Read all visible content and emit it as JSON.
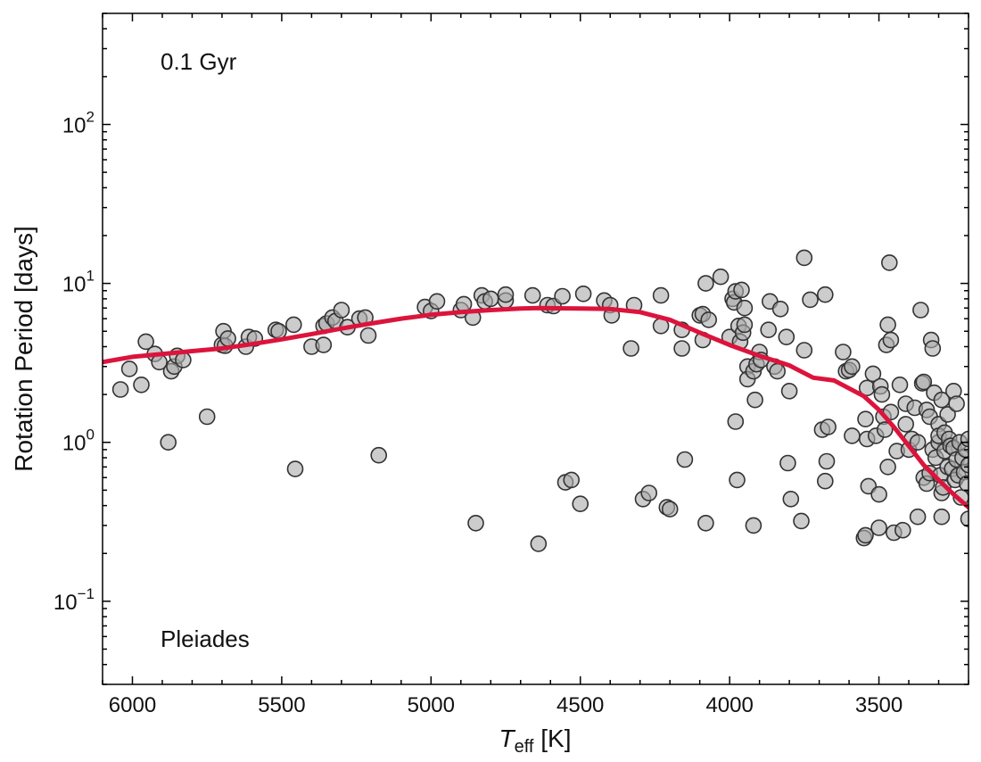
{
  "chart_data": {
    "type": "scatter",
    "xlabel": {
      "main": "T",
      "sub": "eff",
      "unit": " [K]"
    },
    "ylabel": "Rotation Period [days]",
    "x_axis": {
      "reversed": true,
      "range": [
        6100,
        3200
      ],
      "ticks": [
        6000,
        5500,
        5000,
        4500,
        4000,
        3500
      ]
    },
    "y_axis": {
      "scale": "log",
      "range": [
        0.03,
        500
      ],
      "ticks": [
        {
          "value": 0.1,
          "base": "10",
          "exp": "−1"
        },
        {
          "value": 1,
          "base": "10",
          "exp": "0"
        },
        {
          "value": 10,
          "base": "10",
          "exp": "1"
        },
        {
          "value": 100,
          "base": "10",
          "exp": "2"
        }
      ]
    },
    "annotations": {
      "age": "0.1 Gyr",
      "cluster": "Pleiades"
    },
    "colors": {
      "curve": "#dc143c",
      "points_fill": "#aaaaaa",
      "points_edge": "#333333"
    },
    "model_curve": [
      [
        6100,
        3.2
      ],
      [
        6000,
        3.45
      ],
      [
        5900,
        3.6
      ],
      [
        5800,
        3.75
      ],
      [
        5700,
        3.9
      ],
      [
        5600,
        4.15
      ],
      [
        5500,
        4.45
      ],
      [
        5400,
        4.8
      ],
      [
        5300,
        5.2
      ],
      [
        5200,
        5.6
      ],
      [
        5100,
        6.0
      ],
      [
        5000,
        6.35
      ],
      [
        4900,
        6.6
      ],
      [
        4800,
        6.8
      ],
      [
        4700,
        6.95
      ],
      [
        4640,
        7.0
      ],
      [
        4500,
        6.95
      ],
      [
        4400,
        6.9
      ],
      [
        4300,
        6.6
      ],
      [
        4200,
        5.9
      ],
      [
        4100,
        4.9
      ],
      [
        4000,
        4.1
      ],
      [
        3900,
        3.5
      ],
      [
        3800,
        3.05
      ],
      [
        3720,
        2.55
      ],
      [
        3650,
        2.45
      ],
      [
        3550,
        1.95
      ],
      [
        3500,
        1.6
      ],
      [
        3450,
        1.25
      ],
      [
        3400,
        0.95
      ],
      [
        3350,
        0.72
      ],
      [
        3300,
        0.58
      ],
      [
        3250,
        0.47
      ],
      [
        3200,
        0.39
      ]
    ],
    "points": [
      [
        6040,
        2.15
      ],
      [
        6010,
        2.9
      ],
      [
        5970,
        2.3
      ],
      [
        5955,
        4.3
      ],
      [
        5925,
        3.6
      ],
      [
        5910,
        3.2
      ],
      [
        5880,
        1.0
      ],
      [
        5870,
        2.8
      ],
      [
        5860,
        3.0
      ],
      [
        5850,
        3.5
      ],
      [
        5830,
        3.3
      ],
      [
        5750,
        1.45
      ],
      [
        5700,
        4.1
      ],
      [
        5695,
        5.0
      ],
      [
        5690,
        4.05
      ],
      [
        5680,
        4.5
      ],
      [
        5620,
        4.0
      ],
      [
        5610,
        4.6
      ],
      [
        5590,
        4.5
      ],
      [
        5520,
        5.1
      ],
      [
        5510,
        5.0
      ],
      [
        5460,
        5.5
      ],
      [
        5455,
        0.68
      ],
      [
        5400,
        4.0
      ],
      [
        5360,
        4.1
      ],
      [
        5360,
        5.4
      ],
      [
        5350,
        5.6
      ],
      [
        5330,
        6.1
      ],
      [
        5320,
        5.8
      ],
      [
        5300,
        6.8
      ],
      [
        5280,
        5.3
      ],
      [
        5240,
        6.0
      ],
      [
        5220,
        6.1
      ],
      [
        5210,
        4.7
      ],
      [
        5175,
        0.83
      ],
      [
        5020,
        7.1
      ],
      [
        5000,
        6.7
      ],
      [
        4980,
        7.7
      ],
      [
        4900,
        6.8
      ],
      [
        4890,
        7.4
      ],
      [
        4860,
        6.1
      ],
      [
        4850,
        0.31
      ],
      [
        4830,
        8.4
      ],
      [
        4820,
        7.7
      ],
      [
        4800,
        8.0
      ],
      [
        4750,
        7.8
      ],
      [
        4750,
        8.5
      ],
      [
        4660,
        8.4
      ],
      [
        4640,
        0.23
      ],
      [
        4610,
        7.3
      ],
      [
        4590,
        7.2
      ],
      [
        4560,
        8.3
      ],
      [
        4550,
        0.56
      ],
      [
        4530,
        0.58
      ],
      [
        4500,
        0.41
      ],
      [
        4490,
        8.6
      ],
      [
        4420,
        7.8
      ],
      [
        4400,
        7.3
      ],
      [
        4395,
        6.3
      ],
      [
        4330,
        3.9
      ],
      [
        4320,
        7.3
      ],
      [
        4290,
        0.44
      ],
      [
        4270,
        0.48
      ],
      [
        4230,
        5.4
      ],
      [
        4230,
        8.4
      ],
      [
        4210,
        0.39
      ],
      [
        4200,
        0.38
      ],
      [
        4160,
        3.9
      ],
      [
        4160,
        5.1
      ],
      [
        4150,
        0.78
      ],
      [
        4100,
        6.3
      ],
      [
        4090,
        6.4
      ],
      [
        4090,
        4.4
      ],
      [
        4080,
        0.31
      ],
      [
        4080,
        10.0
      ],
      [
        4070,
        5.9
      ],
      [
        4030,
        11.0
      ],
      [
        4000,
        4.6
      ],
      [
        3990,
        8.0
      ],
      [
        3985,
        7.6
      ],
      [
        3980,
        8.9
      ],
      [
        3980,
        1.35
      ],
      [
        3975,
        0.58
      ],
      [
        3970,
        5.4
      ],
      [
        3965,
        4.3
      ],
      [
        3960,
        9.1
      ],
      [
        3955,
        4.9
      ],
      [
        3950,
        7.0
      ],
      [
        3950,
        5.5
      ],
      [
        3940,
        3.0
      ],
      [
        3940,
        2.5
      ],
      [
        3920,
        2.8
      ],
      [
        3920,
        0.3
      ],
      [
        3915,
        1.85
      ],
      [
        3910,
        3.1
      ],
      [
        3900,
        3.7
      ],
      [
        3895,
        3.3
      ],
      [
        3870,
        5.1
      ],
      [
        3865,
        7.7
      ],
      [
        3850,
        3.0
      ],
      [
        3840,
        2.8
      ],
      [
        3830,
        6.9
      ],
      [
        3810,
        4.6
      ],
      [
        3805,
        0.74
      ],
      [
        3800,
        2.1
      ],
      [
        3795,
        0.44
      ],
      [
        3760,
        0.32
      ],
      [
        3750,
        3.8
      ],
      [
        3750,
        14.5
      ],
      [
        3730,
        7.9
      ],
      [
        3690,
        1.2
      ],
      [
        3680,
        8.5
      ],
      [
        3680,
        0.57
      ],
      [
        3675,
        0.76
      ],
      [
        3670,
        1.25
      ],
      [
        3620,
        3.7
      ],
      [
        3610,
        2.8
      ],
      [
        3600,
        2.85
      ],
      [
        3590,
        3.0
      ],
      [
        3590,
        1.1
      ],
      [
        3550,
        0.25
      ],
      [
        3545,
        0.26
      ],
      [
        3545,
        1.4
      ],
      [
        3540,
        2.2
      ],
      [
        3540,
        1.05
      ],
      [
        3535,
        0.53
      ],
      [
        3520,
        2.7
      ],
      [
        3510,
        1.1
      ],
      [
        3500,
        0.29
      ],
      [
        3500,
        0.47
      ],
      [
        3495,
        2.25
      ],
      [
        3490,
        2.0
      ],
      [
        3485,
        1.45
      ],
      [
        3480,
        1.2
      ],
      [
        3475,
        4.1
      ],
      [
        3470,
        0.7
      ],
      [
        3470,
        5.5
      ],
      [
        3465,
        13.5
      ],
      [
        3460,
        1.55
      ],
      [
        3460,
        4.4
      ],
      [
        3450,
        0.27
      ],
      [
        3440,
        0.88
      ],
      [
        3430,
        2.3
      ],
      [
        3420,
        0.28
      ],
      [
        3410,
        1.75
      ],
      [
        3410,
        1.3
      ],
      [
        3400,
        0.9
      ],
      [
        3390,
        1.05
      ],
      [
        3380,
        1.65
      ],
      [
        3370,
        1.0
      ],
      [
        3370,
        0.34
      ],
      [
        3360,
        6.8
      ],
      [
        3355,
        2.35
      ],
      [
        3350,
        2.4
      ],
      [
        3350,
        0.6
      ],
      [
        3340,
        1.6
      ],
      [
        3340,
        0.55
      ],
      [
        3330,
        0.64
      ],
      [
        3330,
        1.45
      ],
      [
        3325,
        4.4
      ],
      [
        3320,
        3.9
      ],
      [
        3320,
        0.9
      ],
      [
        3315,
        2.05
      ],
      [
        3310,
        0.8
      ],
      [
        3300,
        1.0
      ],
      [
        3300,
        1.3
      ],
      [
        3300,
        1.1
      ],
      [
        3295,
        0.62
      ],
      [
        3290,
        1.85
      ],
      [
        3290,
        0.48
      ],
      [
        3290,
        0.34
      ],
      [
        3285,
        0.52
      ],
      [
        3280,
        1.15
      ],
      [
        3280,
        0.88
      ],
      [
        3270,
        1.5
      ],
      [
        3270,
        0.7
      ],
      [
        3265,
        1.05
      ],
      [
        3260,
        0.95
      ],
      [
        3255,
        0.68
      ],
      [
        3250,
        2.1
      ],
      [
        3250,
        0.92
      ],
      [
        3245,
        0.58
      ],
      [
        3240,
        1.75
      ],
      [
        3240,
        0.78
      ],
      [
        3235,
        0.62
      ],
      [
        3230,
        1.0
      ],
      [
        3225,
        0.45
      ],
      [
        3220,
        0.8
      ],
      [
        3215,
        0.65
      ],
      [
        3210,
        0.9
      ],
      [
        3205,
        0.55
      ],
      [
        3200,
        1.05
      ],
      [
        3200,
        0.72
      ],
      [
        3200,
        0.33
      ]
    ]
  }
}
